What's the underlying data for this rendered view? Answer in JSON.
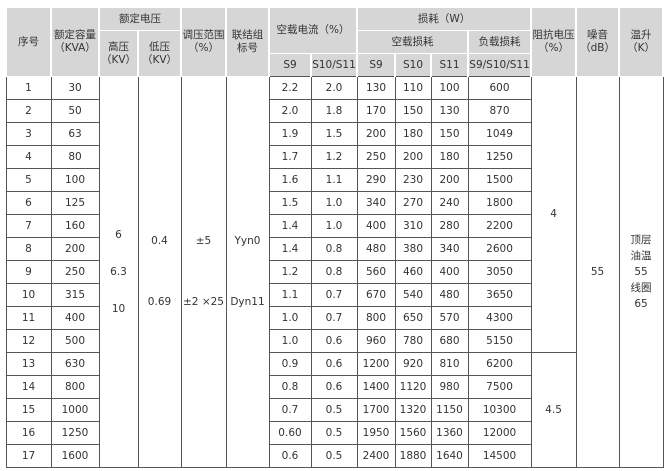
{
  "headers": {
    "no": "序号",
    "capacity": "额定容量（KVA）",
    "rated_voltage": "额定电压",
    "hv": "高压（KV）",
    "lv": "低压（KV）",
    "tap": "调压范围（%）",
    "vector": "联结组标号",
    "noload_current": "空载电流（%）",
    "s9": "S9",
    "s10s11": "S10/S11",
    "loss": "损耗（W）",
    "noload_loss": "空载损耗",
    "load_loss": "负载损耗",
    "s10": "S10",
    "s11": "S11",
    "s9s10s11": "S9/S10/S11",
    "impedance": "阻抗电压（%）",
    "noise": "噪音（dB）",
    "temp": "温升（K）"
  },
  "merged": {
    "hv": [
      "6",
      "6.3",
      "10"
    ],
    "lv": [
      "0.4",
      "0.69"
    ],
    "tap": [
      "±5",
      "±2 ×25"
    ],
    "vector": [
      "Yyn0",
      "Dyn11"
    ],
    "impedance_a": "4",
    "impedance_b": "4.5",
    "noise": "55",
    "temp": [
      "顶层",
      "油温",
      "55",
      "线圈",
      "65"
    ]
  },
  "rows": [
    [
      "1",
      "30",
      "2.2",
      "2.0",
      "130",
      "110",
      "100",
      "600"
    ],
    [
      "2",
      "50",
      "2.0",
      "1.8",
      "170",
      "150",
      "130",
      "870"
    ],
    [
      "3",
      "63",
      "1.9",
      "1.5",
      "200",
      "180",
      "150",
      "1049"
    ],
    [
      "4",
      "80",
      "1.7",
      "1.2",
      "250",
      "200",
      "180",
      "1250"
    ],
    [
      "5",
      "100",
      "1.6",
      "1.1",
      "290",
      "230",
      "200",
      "1500"
    ],
    [
      "6",
      "125",
      "1.5",
      "1.0",
      "340",
      "270",
      "240",
      "1800"
    ],
    [
      "7",
      "160",
      "1.4",
      "1.0",
      "400",
      "310",
      "280",
      "2200"
    ],
    [
      "8",
      "200",
      "1.4",
      "0.8",
      "480",
      "380",
      "340",
      "2600"
    ],
    [
      "9",
      "250",
      "1.2",
      "0.8",
      "560",
      "460",
      "400",
      "3050"
    ],
    [
      "10",
      "315",
      "1.1",
      "0.7",
      "670",
      "540",
      "480",
      "3650"
    ],
    [
      "11",
      "400",
      "1.0",
      "0.7",
      "800",
      "650",
      "570",
      "4300"
    ],
    [
      "12",
      "500",
      "1.0",
      "0.6",
      "960",
      "780",
      "680",
      "5150"
    ],
    [
      "13",
      "630",
      "0.9",
      "0.6",
      "1200",
      "920",
      "810",
      "6200"
    ],
    [
      "14",
      "800",
      "0.8",
      "0.6",
      "1400",
      "1120",
      "980",
      "7500"
    ],
    [
      "15",
      "1000",
      "0.7",
      "0.5",
      "1700",
      "1320",
      "1150",
      "10300"
    ],
    [
      "16",
      "1250",
      "0.60",
      "0.5",
      "1950",
      "1560",
      "1360",
      "12000"
    ],
    [
      "17",
      "1600",
      "0.6",
      "0.5",
      "2400",
      "1880",
      "1640",
      "14500"
    ]
  ]
}
